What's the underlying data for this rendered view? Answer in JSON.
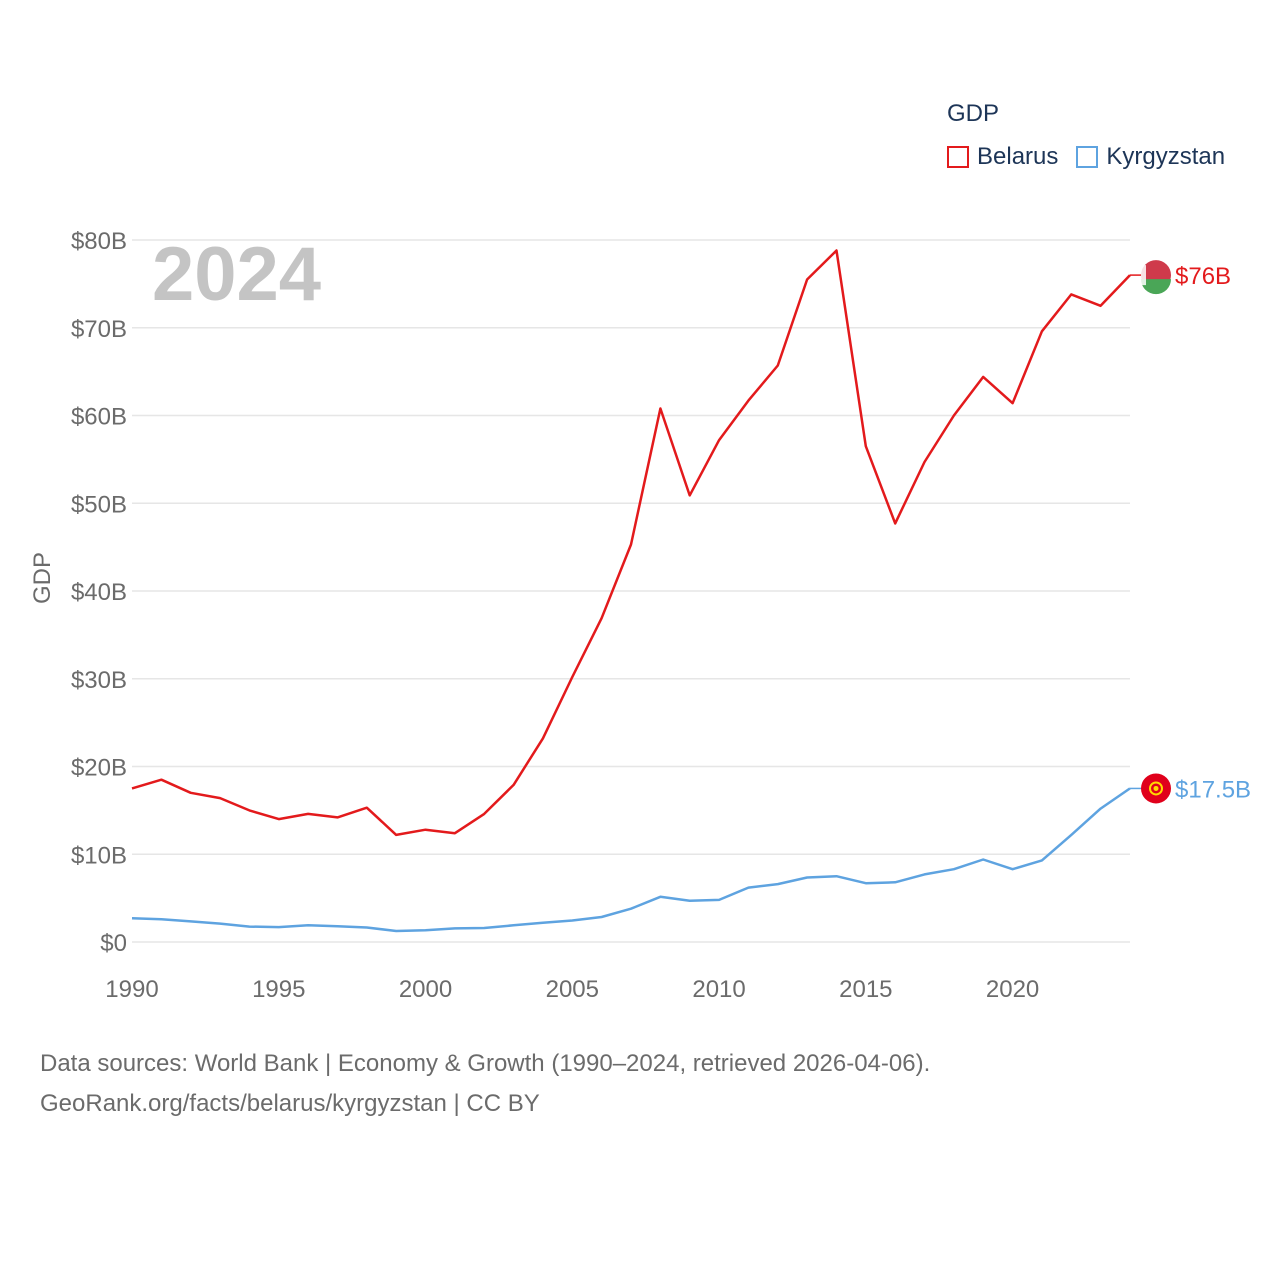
{
  "chart_data": {
    "type": "line",
    "year_label": "2024",
    "ylabel": "GDP",
    "ylim": [
      0,
      80
    ],
    "yticks": [
      {
        "value": 0,
        "label": "$0"
      },
      {
        "value": 10,
        "label": "$10B"
      },
      {
        "value": 20,
        "label": "$20B"
      },
      {
        "value": 30,
        "label": "$30B"
      },
      {
        "value": 40,
        "label": "$40B"
      },
      {
        "value": 50,
        "label": "$50B"
      },
      {
        "value": 60,
        "label": "$60B"
      },
      {
        "value": 70,
        "label": "$70B"
      },
      {
        "value": 80,
        "label": "$80B"
      }
    ],
    "xlim": [
      1990,
      2024
    ],
    "xticks": [
      {
        "value": 1990,
        "label": "1990"
      },
      {
        "value": 1995,
        "label": "1995"
      },
      {
        "value": 2000,
        "label": "2000"
      },
      {
        "value": 2005,
        "label": "2005"
      },
      {
        "value": 2010,
        "label": "2010"
      },
      {
        "value": 2015,
        "label": "2015"
      },
      {
        "value": 2020,
        "label": "2020"
      }
    ],
    "x": [
      1990,
      1991,
      1992,
      1993,
      1994,
      1995,
      1996,
      1997,
      1998,
      1999,
      2000,
      2001,
      2002,
      2003,
      2004,
      2005,
      2006,
      2007,
      2008,
      2009,
      2010,
      2011,
      2012,
      2013,
      2014,
      2015,
      2016,
      2017,
      2018,
      2019,
      2020,
      2021,
      2022,
      2023,
      2024
    ],
    "series": [
      {
        "name": "Belarus",
        "color": "#e31a1c",
        "end_label": "$76B",
        "values": [
          17.5,
          18.5,
          17.0,
          16.4,
          15.0,
          14.0,
          14.6,
          14.2,
          15.3,
          12.2,
          12.8,
          12.4,
          14.6,
          17.9,
          23.2,
          30.2,
          36.9,
          45.3,
          60.8,
          50.9,
          57.2,
          61.7,
          65.7,
          75.5,
          78.8,
          56.5,
          47.7,
          54.7,
          60.0,
          64.4,
          61.4,
          69.6,
          73.8,
          72.5,
          76.0
        ]
      },
      {
        "name": "Kyrgyzstan",
        "color": "#5ea3e0",
        "end_label": "$17.5B",
        "values": [
          2.7,
          2.6,
          2.35,
          2.1,
          1.75,
          1.7,
          1.9,
          1.8,
          1.65,
          1.25,
          1.35,
          1.55,
          1.6,
          1.9,
          2.2,
          2.45,
          2.85,
          3.8,
          5.15,
          4.7,
          4.8,
          6.2,
          6.6,
          7.35,
          7.5,
          6.7,
          6.8,
          7.7,
          8.3,
          9.4,
          8.3,
          9.3,
          12.2,
          15.2,
          17.5
        ]
      }
    ],
    "legend": {
      "title": "GDP",
      "position": "top-right"
    }
  },
  "footer": {
    "line1": "Data sources: World Bank | Economy & Growth (1990–2024, retrieved 2026-04-06).",
    "line2": "GeoRank.org/facts/belarus/kyrgyzstan | CC BY"
  }
}
